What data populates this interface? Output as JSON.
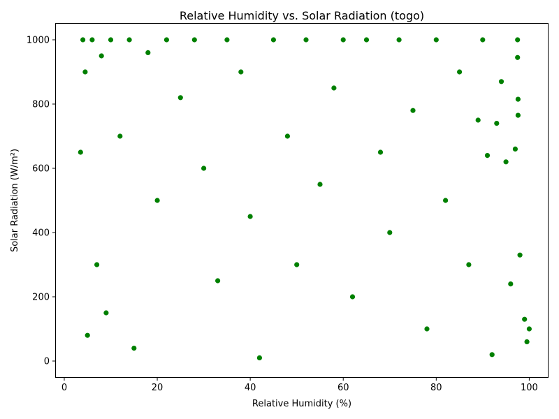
{
  "chart_data": {
    "type": "scatter",
    "title": "Relative Humidity vs. Solar Radiation (togo)",
    "xlabel": "Relative Humidity (%)",
    "ylabel": "Solar Radiation (W/m²)",
    "xlim": [
      -1.8,
      104.0
    ],
    "ylim": [
      -50,
      1050
    ],
    "xticks": [
      0,
      20,
      40,
      60,
      80,
      100
    ],
    "yticks": [
      0,
      200,
      400,
      600,
      800,
      1000
    ],
    "grid": false,
    "marker_color": "#008000",
    "marker_edge_color": "#ffffff",
    "series": [
      {
        "name": "Relative Humidity vs Solar Radiation",
        "points": [
          [
            3.5,
            650
          ],
          [
            4,
            1000
          ],
          [
            4.5,
            900
          ],
          [
            5,
            80
          ],
          [
            6,
            1000
          ],
          [
            7,
            300
          ],
          [
            8,
            950
          ],
          [
            9,
            150
          ],
          [
            10,
            1000
          ],
          [
            12,
            700
          ],
          [
            14,
            1000
          ],
          [
            15,
            40
          ],
          [
            18,
            960
          ],
          [
            20,
            500
          ],
          [
            22,
            1000
          ],
          [
            25,
            820
          ],
          [
            28,
            1000
          ],
          [
            30,
            600
          ],
          [
            33,
            250
          ],
          [
            35,
            1000
          ],
          [
            38,
            900
          ],
          [
            40,
            450
          ],
          [
            42,
            10
          ],
          [
            45,
            1000
          ],
          [
            48,
            700
          ],
          [
            50,
            300
          ],
          [
            52,
            1000
          ],
          [
            55,
            550
          ],
          [
            58,
            850
          ],
          [
            60,
            1000
          ],
          [
            62,
            200
          ],
          [
            65,
            1000
          ],
          [
            68,
            650
          ],
          [
            70,
            400
          ],
          [
            72,
            1000
          ],
          [
            75,
            780
          ],
          [
            78,
            100
          ],
          [
            80,
            1000
          ],
          [
            82,
            500
          ],
          [
            85,
            900
          ],
          [
            87,
            300
          ],
          [
            89,
            750
          ],
          [
            90,
            1000
          ],
          [
            91,
            640
          ],
          [
            92,
            20
          ],
          [
            93,
            740
          ],
          [
            94,
            870
          ],
          [
            95,
            620
          ],
          [
            96,
            240
          ],
          [
            97,
            660
          ],
          [
            97.5,
            1000
          ],
          [
            97.5,
            945
          ],
          [
            97.6,
            815
          ],
          [
            97.6,
            765
          ],
          [
            98,
            330
          ],
          [
            99,
            130
          ],
          [
            99.5,
            60
          ],
          [
            100,
            100
          ]
        ]
      }
    ]
  }
}
